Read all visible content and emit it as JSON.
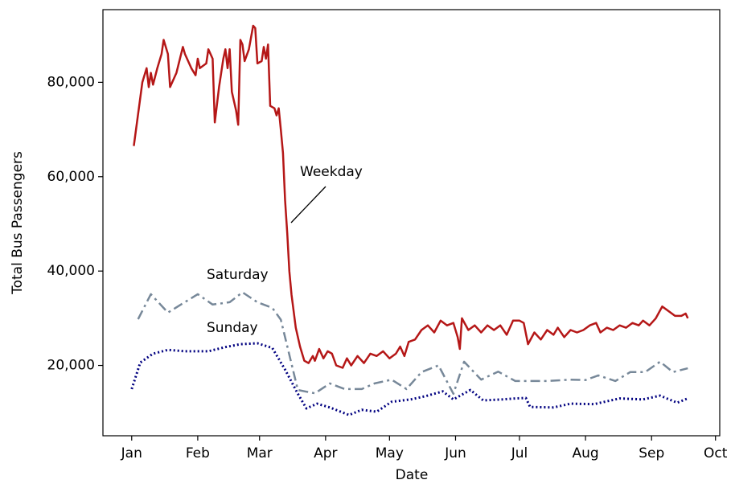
{
  "chart_data": {
    "type": "line",
    "xlabel": "Date",
    "ylabel": "Total Bus Passengers",
    "xlim": [
      -13.5,
      276
    ],
    "xticks": [
      {
        "value": 0,
        "label": "Jan"
      },
      {
        "value": 31,
        "label": "Feb"
      },
      {
        "value": 60,
        "label": "Mar"
      },
      {
        "value": 91,
        "label": "Apr"
      },
      {
        "value": 121,
        "label": "May"
      },
      {
        "value": 152,
        "label": "Jun"
      },
      {
        "value": 182,
        "label": "Jul"
      },
      {
        "value": 213,
        "label": "Aug"
      },
      {
        "value": 244,
        "label": "Sep"
      },
      {
        "value": 274,
        "label": "Oct"
      }
    ],
    "ylim": [
      5100,
      95400
    ],
    "yticks": [
      {
        "value": 20000,
        "label": "20,000"
      },
      {
        "value": 40000,
        "label": "40,000"
      },
      {
        "value": 60000,
        "label": "60,000"
      },
      {
        "value": 80000,
        "label": "80,000"
      }
    ],
    "grid": false,
    "series": [
      {
        "name": "Weekday",
        "color": "#b51717",
        "linestyle": "solid",
        "x": [
          1,
          5,
          7,
          8,
          9,
          10,
          12,
          14,
          15,
          17,
          18,
          21,
          24,
          25,
          28,
          30,
          31,
          32,
          35,
          36,
          38,
          39,
          41,
          43,
          44,
          45,
          46,
          47,
          49,
          50,
          51,
          52,
          53,
          55,
          57,
          58,
          59,
          61,
          62,
          63,
          64,
          65,
          67,
          68,
          69,
          70,
          71,
          72,
          73,
          74,
          75,
          77,
          79,
          81,
          83,
          85,
          86,
          88,
          90,
          92,
          94,
          96,
          99,
          101,
          103,
          106,
          109,
          112,
          115,
          118,
          121,
          124,
          126,
          128,
          130,
          133,
          136,
          139,
          142,
          145,
          148,
          151,
          153,
          154,
          155,
          158,
          161,
          164,
          167,
          170,
          173,
          176,
          179,
          182,
          184,
          186,
          189,
          192,
          195,
          198,
          200,
          203,
          206,
          209,
          212,
          215,
          218,
          220,
          223,
          226,
          229,
          232,
          235,
          238,
          240,
          243,
          246,
          249,
          252,
          255,
          258,
          260,
          261
        ],
        "values": [
          66500,
          80000,
          83000,
          79000,
          82000,
          79500,
          83000,
          86000,
          89000,
          86000,
          79000,
          82000,
          87500,
          86000,
          83000,
          81500,
          85000,
          83000,
          84000,
          87000,
          85000,
          71500,
          79000,
          85000,
          87000,
          83000,
          87000,
          78000,
          74000,
          71000,
          89000,
          88000,
          84500,
          87000,
          92000,
          91500,
          84000,
          84500,
          87500,
          85000,
          88000,
          75000,
          74500,
          73000,
          74500,
          70000,
          65000,
          55000,
          48000,
          40000,
          35000,
          28000,
          24000,
          21000,
          20500,
          22000,
          21000,
          23500,
          21500,
          23000,
          22500,
          20000,
          19500,
          21500,
          20000,
          22000,
          20500,
          22500,
          22000,
          23000,
          21500,
          22500,
          24000,
          22000,
          25000,
          25500,
          27500,
          28500,
          27000,
          29500,
          28500,
          29000,
          26000,
          23500,
          30000,
          27500,
          28500,
          27000,
          28500,
          27500,
          28500,
          26500,
          29500,
          29500,
          29000,
          24500,
          27000,
          25500,
          27500,
          26500,
          28000,
          26000,
          27500,
          27000,
          27500,
          28500,
          29000,
          27000,
          28000,
          27500,
          28500,
          28000,
          29000,
          28500,
          29500,
          28500,
          30000,
          32500,
          31500,
          30500,
          30500,
          31000,
          30000
        ]
      },
      {
        "name": "Saturday",
        "color": "#778899",
        "linestyle": "dashdot",
        "x": [
          3,
          9,
          17,
          31,
          38,
          46,
          52,
          59,
          66,
          70,
          78,
          86,
          93,
          100,
          108,
          114,
          122,
          129,
          136,
          144,
          151,
          156,
          164,
          172,
          180,
          187,
          195,
          206,
          213,
          219,
          227,
          234,
          241,
          248,
          254,
          261
        ],
        "values": [
          29800,
          35100,
          31200,
          35100,
          32900,
          33400,
          35500,
          33400,
          32200,
          29700,
          14800,
          14100,
          16200,
          15000,
          15000,
          16200,
          17000,
          15000,
          18600,
          20000,
          14000,
          20800,
          17000,
          18700,
          16700,
          16700,
          16700,
          17000,
          16900,
          17900,
          16700,
          18600,
          18600,
          20800,
          18600,
          19400
        ]
      },
      {
        "name": "Sunday",
        "color": "#000080",
        "linestyle": "dotted",
        "x": [
          0,
          4,
          10,
          17,
          25,
          36,
          44,
          51,
          59,
          66,
          72,
          78,
          82,
          87,
          93,
          102,
          108,
          115,
          122,
          131,
          138,
          146,
          151,
          159,
          165,
          174,
          180,
          185,
          187,
          198,
          206,
          217,
          229,
          240,
          248,
          256,
          261
        ],
        "values": [
          15000,
          20600,
          22500,
          23300,
          23000,
          23000,
          23900,
          24500,
          24700,
          23700,
          19100,
          14000,
          10900,
          11900,
          11100,
          9500,
          10600,
          10200,
          12300,
          12800,
          13500,
          14500,
          12800,
          14800,
          12600,
          12800,
          13000,
          13100,
          11200,
          11100,
          11900,
          11800,
          13000,
          12800,
          13600,
          12100,
          13000
        ]
      }
    ]
  }
}
